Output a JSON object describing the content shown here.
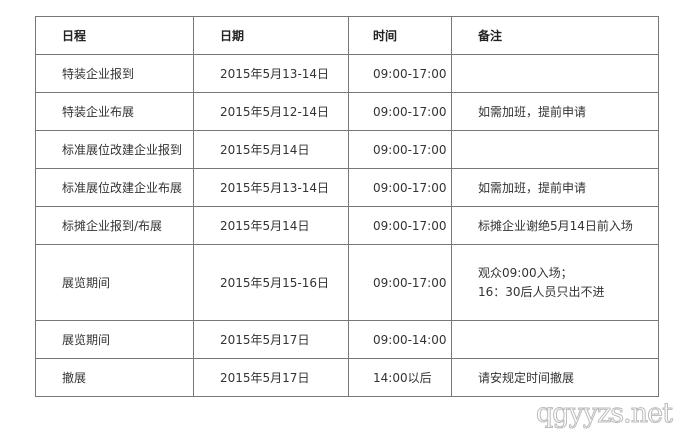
{
  "headers": [
    "日程",
    "日期",
    "时间",
    "备注"
  ],
  "rows": [
    {
      "schedule": "特装企业报到",
      "date": "2015年5月13-14日",
      "time": "09:00-17:00",
      "note": ""
    },
    {
      "schedule": "特装企业布展",
      "date": "2015年5月12-14日",
      "time": "09:00-17:00",
      "note": "如需加班，提前申请"
    },
    {
      "schedule": "标准展位改建企业报到",
      "date": "2015年5月14日",
      "time": "09:00-17:00",
      "note": ""
    },
    {
      "schedule": "标准展位改建企业布展",
      "date": "2015年5月13-14日",
      "time": "09:00-17:00",
      "note": "如需加班，提前申请"
    },
    {
      "schedule": "标摊企业报到/布展",
      "date": "2015年5月14日",
      "time": "09:00-17:00",
      "note": "标摊企业谢绝5月14日前入场"
    },
    {
      "schedule": "展览期间",
      "date": "2015年5月15-16日",
      "time": "09:00-17:00",
      "note": "观众09:00入场；",
      "note_line2": "16：30后人员只出不进"
    },
    {
      "schedule": "展览期间",
      "date": "2015年5月17日",
      "time": "09:00-14:00",
      "note": ""
    },
    {
      "schedule": "撤展",
      "date": "2015年5月17日",
      "time": "14:00以后",
      "note": "请安规定时间撤展"
    }
  ],
  "watermark": "qgyyzs.net"
}
